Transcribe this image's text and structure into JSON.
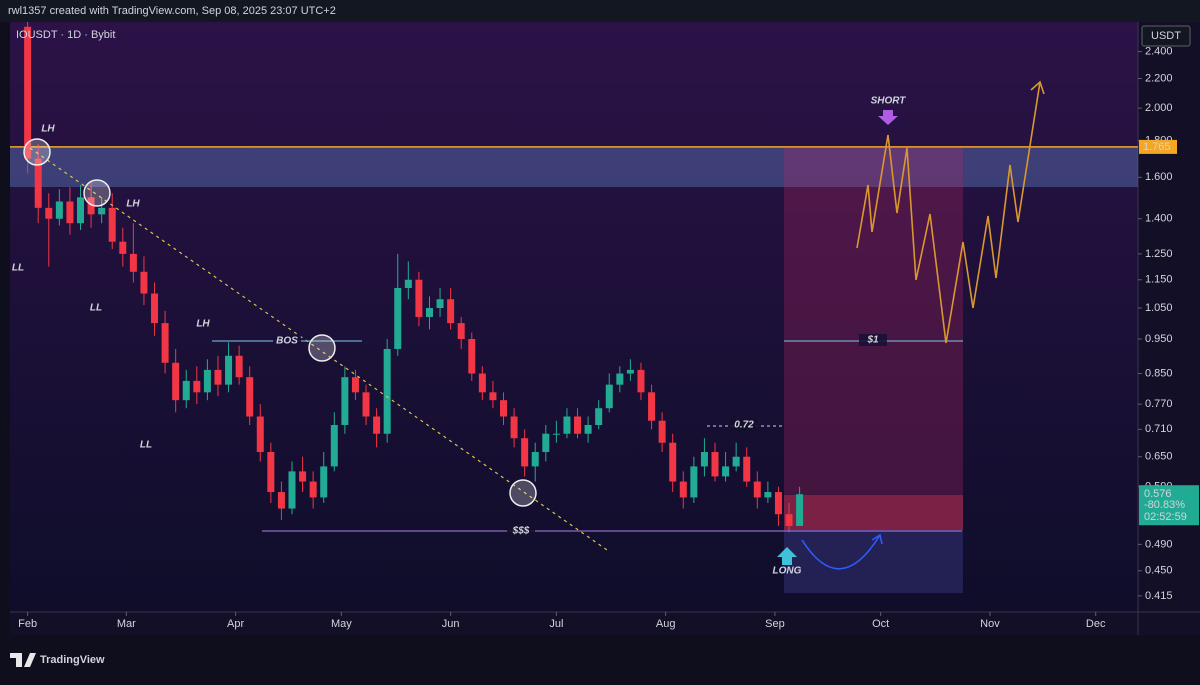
{
  "header": {
    "credit": "rwl1357 created with TradingView.com, Sep 08, 2025 23:07 UTC+2",
    "symbol": "IOUSDT · 1D · Bybit",
    "currency": "USDT"
  },
  "chart_data": {
    "type": "candlestick",
    "x": [
      "2025-02-01",
      "2025-02-04",
      "2025-02-07",
      "2025-02-10",
      "2025-02-13",
      "2025-02-16",
      "2025-02-19",
      "2025-02-22",
      "2025-02-25",
      "2025-02-28",
      "2025-03-03",
      "2025-03-06",
      "2025-03-09",
      "2025-03-12",
      "2025-03-15",
      "2025-03-18",
      "2025-03-21",
      "2025-03-24",
      "2025-03-27",
      "2025-03-30",
      "2025-04-02",
      "2025-04-05",
      "2025-04-08",
      "2025-04-11",
      "2025-04-14",
      "2025-04-17",
      "2025-04-20",
      "2025-04-23",
      "2025-04-26",
      "2025-04-29",
      "2025-05-02",
      "2025-05-05",
      "2025-05-08",
      "2025-05-11",
      "2025-05-14",
      "2025-05-17",
      "2025-05-20",
      "2025-05-23",
      "2025-05-26",
      "2025-05-29",
      "2025-06-01",
      "2025-06-04",
      "2025-06-07",
      "2025-06-10",
      "2025-06-13",
      "2025-06-16",
      "2025-06-19",
      "2025-06-22",
      "2025-06-25",
      "2025-06-28",
      "2025-07-01",
      "2025-07-04",
      "2025-07-07",
      "2025-07-10",
      "2025-07-13",
      "2025-07-16",
      "2025-07-19",
      "2025-07-22",
      "2025-07-25",
      "2025-07-28",
      "2025-07-31",
      "2025-08-03",
      "2025-08-06",
      "2025-08-09",
      "2025-08-12",
      "2025-08-15",
      "2025-08-18",
      "2025-08-21",
      "2025-08-24",
      "2025-08-27",
      "2025-08-30",
      "2025-09-02",
      "2025-09-05",
      "2025-09-08"
    ],
    "open": [
      2.6,
      1.7,
      1.45,
      1.4,
      1.48,
      1.38,
      1.5,
      1.42,
      1.45,
      1.3,
      1.25,
      1.18,
      1.1,
      1.0,
      0.88,
      0.78,
      0.83,
      0.8,
      0.86,
      0.82,
      0.9,
      0.84,
      0.74,
      0.66,
      0.58,
      0.55,
      0.62,
      0.6,
      0.57,
      0.63,
      0.72,
      0.84,
      0.8,
      0.74,
      0.7,
      0.92,
      1.12,
      1.15,
      1.02,
      1.05,
      1.08,
      1.0,
      0.95,
      0.85,
      0.8,
      0.78,
      0.74,
      0.69,
      0.63,
      0.66,
      0.7,
      0.7,
      0.74,
      0.7,
      0.72,
      0.76,
      0.82,
      0.85,
      0.86,
      0.8,
      0.73,
      0.68,
      0.6,
      0.57,
      0.63,
      0.66,
      0.61,
      0.63,
      0.65,
      0.6,
      0.57,
      0.58,
      0.54,
      0.52
    ],
    "high": [
      2.64,
      1.78,
      1.52,
      1.54,
      1.55,
      1.56,
      1.58,
      1.5,
      1.52,
      1.36,
      1.38,
      1.24,
      1.14,
      1.04,
      0.92,
      0.86,
      0.87,
      0.89,
      0.9,
      0.94,
      0.93,
      0.87,
      0.77,
      0.68,
      0.6,
      0.64,
      0.65,
      0.62,
      0.66,
      0.75,
      0.87,
      0.86,
      0.82,
      0.76,
      0.95,
      1.25,
      1.22,
      1.18,
      1.09,
      1.12,
      1.12,
      1.02,
      0.97,
      0.87,
      0.83,
      0.8,
      0.76,
      0.71,
      0.68,
      0.72,
      0.73,
      0.76,
      0.76,
      0.74,
      0.78,
      0.85,
      0.87,
      0.89,
      0.88,
      0.82,
      0.75,
      0.7,
      0.62,
      0.65,
      0.69,
      0.68,
      0.66,
      0.68,
      0.67,
      0.62,
      0.6,
      0.59,
      0.56,
      0.59
    ],
    "low": [
      1.62,
      1.38,
      1.2,
      1.37,
      1.33,
      1.35,
      1.36,
      1.38,
      1.27,
      1.2,
      1.14,
      1.06,
      0.96,
      0.85,
      0.75,
      0.76,
      0.77,
      0.78,
      0.79,
      0.8,
      0.82,
      0.72,
      0.64,
      0.56,
      0.53,
      0.54,
      0.58,
      0.55,
      0.56,
      0.62,
      0.7,
      0.78,
      0.72,
      0.67,
      0.68,
      0.9,
      1.08,
      0.99,
      0.98,
      1.02,
      0.98,
      0.92,
      0.83,
      0.78,
      0.76,
      0.72,
      0.67,
      0.61,
      0.6,
      0.64,
      0.68,
      0.69,
      0.69,
      0.68,
      0.71,
      0.75,
      0.8,
      0.83,
      0.78,
      0.71,
      0.66,
      0.58,
      0.55,
      0.56,
      0.61,
      0.6,
      0.6,
      0.62,
      0.59,
      0.55,
      0.56,
      0.52,
      0.51,
      0.52
    ],
    "close": [
      1.7,
      1.45,
      1.4,
      1.48,
      1.38,
      1.5,
      1.42,
      1.45,
      1.3,
      1.25,
      1.18,
      1.1,
      1.0,
      0.88,
      0.78,
      0.83,
      0.8,
      0.86,
      0.82,
      0.9,
      0.84,
      0.74,
      0.66,
      0.58,
      0.55,
      0.62,
      0.6,
      0.57,
      0.63,
      0.72,
      0.84,
      0.8,
      0.74,
      0.7,
      0.92,
      1.12,
      1.15,
      1.02,
      1.05,
      1.08,
      1.0,
      0.95,
      0.85,
      0.8,
      0.78,
      0.74,
      0.69,
      0.63,
      0.66,
      0.7,
      0.7,
      0.74,
      0.7,
      0.72,
      0.76,
      0.82,
      0.85,
      0.86,
      0.8,
      0.73,
      0.68,
      0.6,
      0.57,
      0.63,
      0.66,
      0.61,
      0.63,
      0.65,
      0.6,
      0.57,
      0.58,
      0.54,
      0.52,
      0.576
    ],
    "up_color": "#22ab94",
    "down_color": "#f23645",
    "log_scale": true,
    "ylim": [
      0.394,
      2.64
    ],
    "yticks": [
      {
        "value": 2.4,
        "label": "2.400"
      },
      {
        "value": 2.2,
        "label": "2.200"
      },
      {
        "value": 2.0,
        "label": "2.000"
      },
      {
        "value": 1.8,
        "label": "1.800"
      },
      {
        "value": 1.6,
        "label": "1.600"
      },
      {
        "value": 1.4,
        "label": "1.400"
      },
      {
        "value": 1.25,
        "label": "1.250"
      },
      {
        "value": 1.15,
        "label": "1.150"
      },
      {
        "value": 1.05,
        "label": "1.050"
      },
      {
        "value": 0.95,
        "label": "0.950"
      },
      {
        "value": 0.85,
        "label": "0.850"
      },
      {
        "value": 0.77,
        "label": "0.770"
      },
      {
        "value": 0.71,
        "label": "0.710"
      },
      {
        "value": 0.65,
        "label": "0.650"
      },
      {
        "value": 0.59,
        "label": "0.590"
      },
      {
        "value": 0.49,
        "label": "0.490"
      },
      {
        "value": 0.45,
        "label": "0.450"
      },
      {
        "value": 0.415,
        "label": "0.415"
      }
    ],
    "xlim": [
      "2025-01-27",
      "2025-12-13"
    ],
    "xticks": [
      {
        "value": "2025-02-01",
        "label": "Feb"
      },
      {
        "value": "2025-03-01",
        "label": "Mar"
      },
      {
        "value": "2025-04-01",
        "label": "Apr"
      },
      {
        "value": "2025-05-01",
        "label": "May"
      },
      {
        "value": "2025-06-01",
        "label": "Jun"
      },
      {
        "value": "2025-07-01",
        "label": "Jul"
      },
      {
        "value": "2025-08-01",
        "label": "Aug"
      },
      {
        "value": "2025-09-01",
        "label": "Sep"
      },
      {
        "value": "2025-10-01",
        "label": "Oct"
      },
      {
        "value": "2025-11-01",
        "label": "Nov"
      },
      {
        "value": "2025-12-01",
        "label": "Dec"
      }
    ],
    "price_line": {
      "value": 1.765,
      "label": "1.765",
      "color": "#f5a623"
    },
    "last_price": {
      "value": 0.576,
      "change": "-80.83%",
      "countdown": "02:52:59"
    },
    "annotations": [
      "LH",
      "LH",
      "LH",
      "LL",
      "LL",
      "LL",
      "BOS",
      "$$$",
      "0.72",
      "$1",
      "SHORT",
      "LONG"
    ]
  },
  "footer": {
    "logo": "TradingView"
  }
}
